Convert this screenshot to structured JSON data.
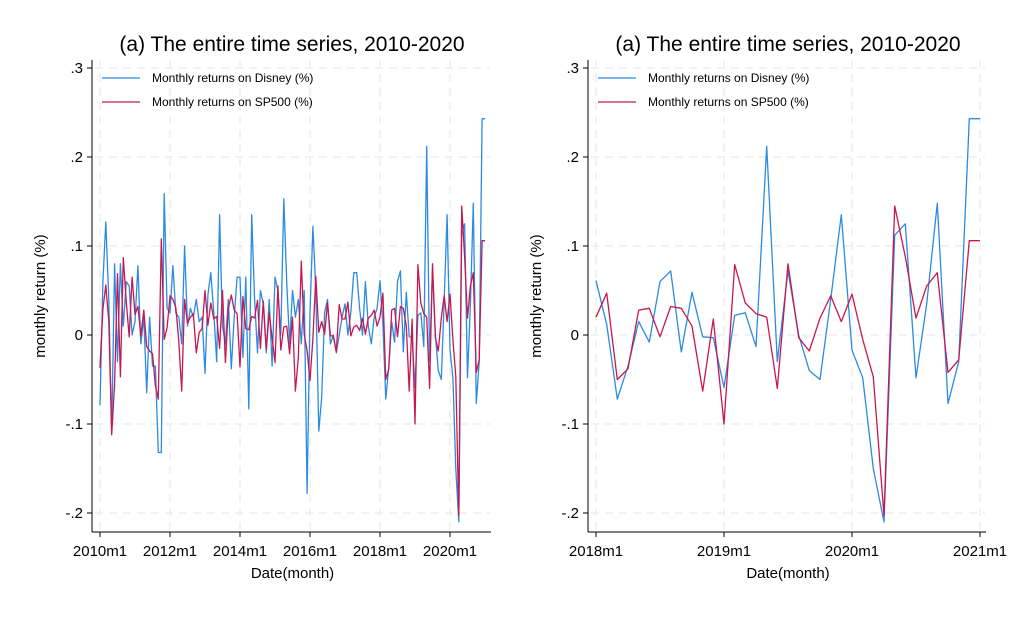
{
  "colors": {
    "disney": "#2b8be0",
    "sp500": "#c8174f"
  },
  "chart_data": [
    {
      "type": "line",
      "title": "(a) The entire time series, 2010-2020",
      "xlabel": "Date(month)",
      "ylabel": "monthly return (%)",
      "ylim": [
        -0.22,
        0.32
      ],
      "xlim": [
        "2010-01",
        "2021-01"
      ],
      "x_ticks": [
        "2010m1",
        "2012m1",
        "2014m1",
        "2016m1",
        "2018m1",
        "2020m1"
      ],
      "y_ticks": [
        ".3",
        ".2",
        ".1",
        "0",
        "-.1",
        "-.2"
      ],
      "grid": true,
      "legend_position": "top-left",
      "x_start": "2010-01",
      "series": [
        {
          "name": "Monthly returns on Disney (%)",
          "color": "#2b8be0",
          "values": [
            -0.079,
            0.06,
            0.127,
            0.04,
            -0.11,
            0.08,
            -0.03,
            0.08,
            0.01,
            0.06,
            0.055,
            0.0,
            0.015,
            0.078,
            -0.01,
            0.02,
            -0.065,
            0.02,
            -0.035,
            -0.035,
            -0.132,
            -0.132,
            0.159,
            0.03,
            0.025,
            0.078,
            0.025,
            0.02,
            -0.01,
            0.1,
            0.01,
            0.03,
            0.02,
            0.04,
            0.015,
            0.02,
            -0.043,
            0.045,
            0.07,
            0.025,
            -0.03,
            0.135,
            0.01,
            -0.01,
            0.04,
            -0.038,
            0.02,
            0.065,
            0.065,
            -0.025,
            0.065,
            -0.083,
            0.135,
            0.04,
            -0.02,
            0.05,
            0.035,
            -0.02,
            0.04,
            -0.035,
            0.065,
            0.05,
            0.0,
            0.153,
            0.06,
            -0.01,
            0.05,
            0.02,
            0.04,
            -0.01,
            0.05,
            -0.178,
            0.025,
            0.122,
            0.05,
            -0.108,
            -0.07,
            0.025,
            0.04,
            -0.01,
            0.0,
            -0.02,
            0.0,
            0.02,
            0.035,
            0.0,
            0.025,
            0.07,
            0.07,
            0.03,
            0.0,
            0.06,
            0.01,
            -0.01,
            0.02,
            0.03,
            0.04,
            -0.08,
            0.02,
            0.03,
            0.065,
            0.01,
            0.035,
            0.0,
            0.04,
            -0.04,
            0.0,
            -0.01,
            0.06,
            0.055,
            0.04,
            0.07,
            0.075,
            -0.03,
            0.0,
            -0.05,
            0.05,
            0.015,
            0.025,
            -0.025,
            0.035,
            -0.07,
            -0.01,
            0.01,
            0.02,
            -0.07,
            0.015,
            0.04,
            0.04,
            -0.05,
            0.05,
            0.035,
            0.015,
            0.025,
            -0.015,
            0.045,
            0.02,
            0.03,
            -0.015,
            0.015,
            0.032,
            -0.005,
            0.01,
            -0.03,
            0.06,
            0.035,
            0.03,
            0.025,
            0.03,
            0.07,
            0.05,
            0.01,
            -0.005,
            -0.02,
            -0.035,
            0.05,
            0.015,
            0.0,
            0.025,
            -0.005,
            0.06,
            0.07,
            -0.01,
            -0.045,
            0.05,
            0.02,
            0.035,
            0.0,
            0.06,
            0.02,
            -0.048,
            0.135,
            0.0,
            -0.01,
            0.05,
            0.21,
            -0.04,
            -0.07,
            0.02,
            -0.05,
            0.0,
            0.04,
            -0.05,
            -0.02,
            0.015,
            -0.015,
            0.04,
            0.11,
            -0.02,
            -0.04,
            0.04,
            0.135,
            -0.017,
            -0.048,
            -0.15,
            -0.21,
            0.112,
            0.125,
            -0.048,
            0.035,
            0.148,
            -0.077,
            0.0,
            0.243
          ],
          "values_note": ""
        }
      ]
    }
  ]
}
